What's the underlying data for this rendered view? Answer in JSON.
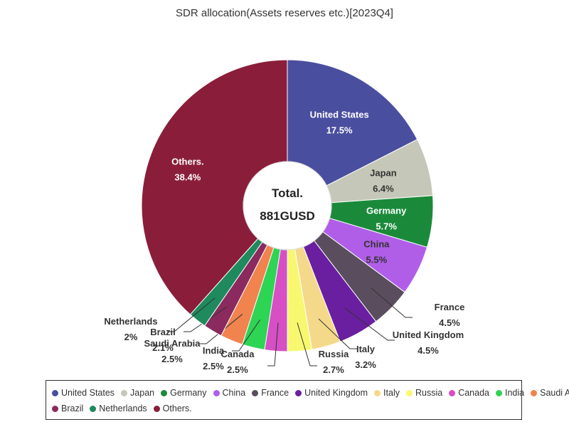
{
  "chart_data": {
    "type": "pie",
    "title": "SDR allocation(Assets reserves etc.)[2023Q4]",
    "center_label": "Total.",
    "center_value": "881GUSD",
    "slices": [
      {
        "name": "United States",
        "value": 17.5,
        "label": "17.5%",
        "color": "#4a4e9e"
      },
      {
        "name": "Japan",
        "value": 6.4,
        "label": "6.4%",
        "color": "#c5c8b8"
      },
      {
        "name": "Germany",
        "value": 5.7,
        "label": "5.7%",
        "color": "#1a8a3a"
      },
      {
        "name": "China",
        "value": 5.5,
        "label": "5.5%",
        "color": "#b05ee8"
      },
      {
        "name": "France",
        "value": 4.5,
        "label": "4.5%",
        "color": "#5a4e5e"
      },
      {
        "name": "United Kingdom",
        "value": 4.5,
        "label": "4.5%",
        "color": "#6a1fa0"
      },
      {
        "name": "Italy",
        "value": 3.2,
        "label": "3.2%",
        "color": "#f5d98a"
      },
      {
        "name": "Russia",
        "value": 2.7,
        "label": "2.7%",
        "color": "#f8f870"
      },
      {
        "name": "Canada",
        "value": 2.5,
        "label": "2.5%",
        "color": "#d64fc4"
      },
      {
        "name": "India",
        "value": 2.5,
        "label": "2.5%",
        "color": "#2ed454"
      },
      {
        "name": "Saudi Arabia",
        "value": 2.5,
        "label": "2.5%",
        "color": "#f0834e"
      },
      {
        "name": "Brazil",
        "value": 2.1,
        "label": "2.1%",
        "color": "#8a2a5e"
      },
      {
        "name": "Netherlands",
        "value": 2.0,
        "label": "2%",
        "color": "#1e8a5e"
      },
      {
        "name": "Others.",
        "value": 38.4,
        "label": "38.4%",
        "color": "#8a1e3a"
      }
    ],
    "legend_position": "bottom"
  }
}
